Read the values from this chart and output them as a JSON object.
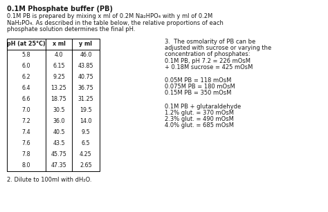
{
  "title": "0.1M Phosphate buffer (PB)",
  "intro_line1": "0.1M PB is prepared by mixing x ml of 0.2M Na₂HPO₄ with y ml of 0.2M",
  "intro_line2": "NaH₂PO₄. As described in the table below, the relative proportions of each",
  "intro_line3": "phosphate solution determines the final pH.",
  "table_headers": [
    "pH (at 25°C)",
    "x ml",
    "y ml"
  ],
  "table_data": [
    [
      "5.8",
      "4.0",
      "46.0"
    ],
    [
      "6.0",
      "6.15",
      "43.85"
    ],
    [
      "6.2",
      "9.25",
      "40.75"
    ],
    [
      "6.4",
      "13.25",
      "36.75"
    ],
    [
      "6.6",
      "18.75",
      "31.25"
    ],
    [
      "7.0",
      "30.5",
      "19.5"
    ],
    [
      "7.2",
      "36.0",
      "14.0"
    ],
    [
      "7.4",
      "40.5",
      "9.5"
    ],
    [
      "7.6",
      "43.5",
      "6.5"
    ],
    [
      "7.8",
      "45.75",
      "4.25"
    ],
    [
      "8.0",
      "47.35",
      "2.65"
    ]
  ],
  "footnote": "2. Dilute to 100ml with dH₂O.",
  "right_block1_line1": "3.  The osmolarity of PB can be",
  "right_block1_line2": "adjusted with sucrose or varying the",
  "right_block1_line3": "concentration of phosphates:",
  "right_block1_line4": "0.1M PB, pH 7.2 = 226 mOsM",
  "right_block1_line5": "+ 0.18M sucrose = 425 mOsM",
  "right_block2_line1": "0.05M PB = 118 mOsM",
  "right_block2_line2": "0.075M PB = 180 mOsM",
  "right_block2_line3": "0.15M PB = 350 mOsM",
  "right_block3_line1": "0.1M PB + glutaraldehyde",
  "right_block3_line2": "1.2% glut. = 370 mOsM",
  "right_block3_line3": "2.3% glut. = 490 mOsM",
  "right_block3_line4": "4.0% glut. = 685 mOsM",
  "bg_color": "#ffffff",
  "text_color": "#1a1a1a",
  "font_size_title": 7.0,
  "font_size_body": 6.0,
  "font_size_table": 5.8
}
